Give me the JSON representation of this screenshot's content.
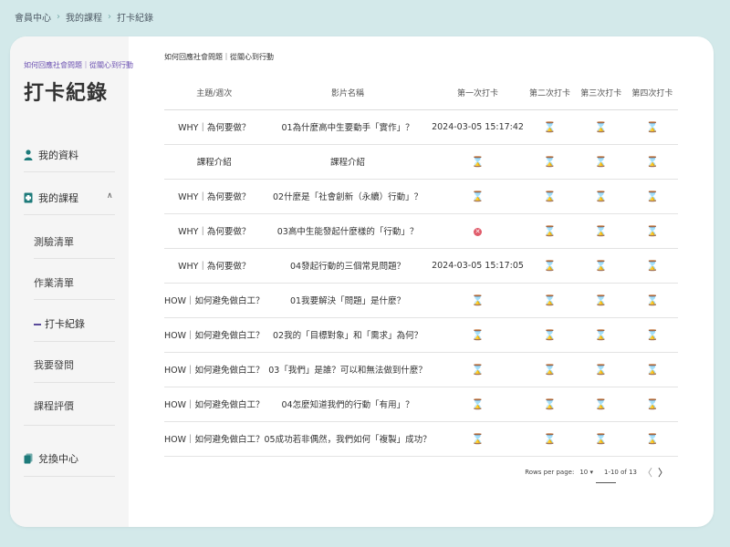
{
  "breadcrumb": [
    "會員中心",
    "我的課程",
    "打卡紀錄"
  ],
  "sidebar": {
    "course_tag": "如何回應社會問題｜從關心到行動",
    "title": "打卡紀錄",
    "items": {
      "profile": "我的資料",
      "courses": "我的課程",
      "redeem": "兌換中心"
    },
    "sub_items": [
      "測驗清單",
      "作業清單",
      "打卡紀錄",
      "我要發問",
      "課程評價"
    ]
  },
  "main": {
    "section_label": "如何回應社會問題｜從關心到行動",
    "columns": [
      "主題/週次",
      "影片名稱",
      "第一次打卡",
      "第二次打卡",
      "第三次打卡",
      "第四次打卡"
    ],
    "rows": [
      {
        "topic": "WHY｜為何要做？",
        "video": "01為什麼高中生要動手「實作」？",
        "c1": "2024-03-05 15:17:42",
        "c2": "⌛",
        "c3": "⌛",
        "c4": "⌛"
      },
      {
        "topic": "課程介紹",
        "video": "課程介紹",
        "c1": "⌛",
        "c2": "⌛",
        "c3": "⌛",
        "c4": "⌛"
      },
      {
        "topic": "WHY｜為何要做？",
        "video": "02什麼是「社會創新（永續）行動」？",
        "c1": "⌛",
        "c2": "⌛",
        "c3": "⌛",
        "c4": "⌛"
      },
      {
        "topic": "WHY｜為何要做？",
        "video": "03高中生能發起什麼樣的「行動」？",
        "c1": "✕",
        "c2": "⌛",
        "c3": "⌛",
        "c4": "⌛"
      },
      {
        "topic": "WHY｜為何要做？",
        "video": "04發起行動的三個常見問題？",
        "c1": "2024-03-05 15:17:05",
        "c2": "⌛",
        "c3": "⌛",
        "c4": "⌛"
      },
      {
        "topic": "HOW｜如何避免做白工？",
        "video": "01我要解決「問題」是什麼？",
        "c1": "⌛",
        "c2": "⌛",
        "c3": "⌛",
        "c4": "⌛"
      },
      {
        "topic": "HOW｜如何避免做白工？",
        "video": "02我的「目標對象」和「需求」為何？",
        "c1": "⌛",
        "c2": "⌛",
        "c3": "⌛",
        "c4": "⌛"
      },
      {
        "topic": "HOW｜如何避免做白工？",
        "video": "03「我們」是誰？可以和無法做到什麼？",
        "c1": "⌛",
        "c2": "⌛",
        "c3": "⌛",
        "c4": "⌛"
      },
      {
        "topic": "HOW｜如何避免做白工？",
        "video": "04怎麼知道我們的行動「有用」？",
        "c1": "⌛",
        "c2": "⌛",
        "c3": "⌛",
        "c4": "⌛"
      },
      {
        "topic": "HOW｜如何避免做白工？",
        "video": "05成功若非偶然，我們如何「複製」成功？",
        "c1": "⌛",
        "c2": "⌛",
        "c3": "⌛",
        "c4": "⌛"
      }
    ]
  },
  "pager": {
    "rows_per_page_label": "Rows per page:",
    "rows_per_page_value": "10",
    "range": "1-10 of 13"
  },
  "colors": {
    "background": "#d3e9ea",
    "accent": "#6a4fb1",
    "icon": "#1d7a7a",
    "error": "#e05c6b"
  }
}
